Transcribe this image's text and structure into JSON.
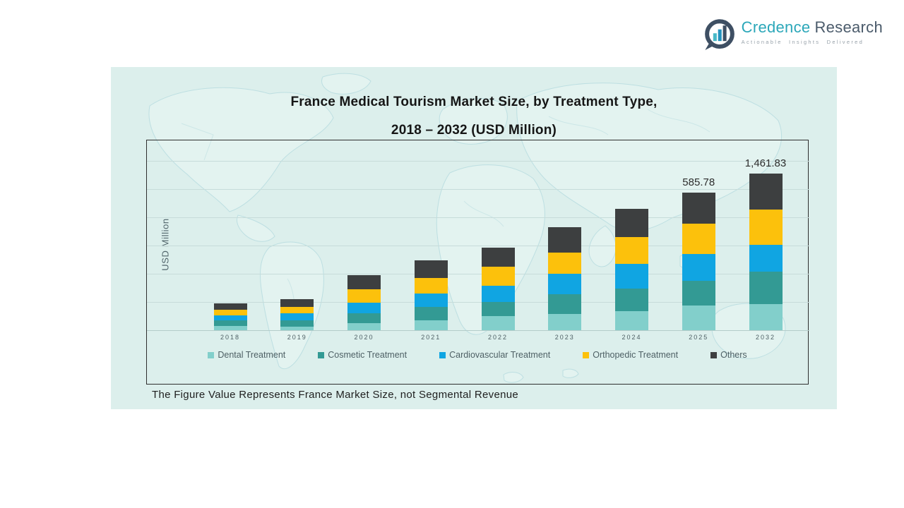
{
  "logo": {
    "brand_primary": "Credence",
    "brand_secondary": "Research",
    "tagline": "Actionable Insights Delivered"
  },
  "panel": {
    "title_line1": "France Medical Tourism Market Size, by Treatment Type,",
    "title_line2": "2018 – 2032 (USD Million)",
    "footnote": "The Figure Value Represents France Market Size, not Segmental Revenue"
  },
  "chart_data": {
    "type": "stacked-bar",
    "title": "France Medical Tourism Market Size, by Treatment Type, 2018 – 2032 (USD Million)",
    "xlabel": "",
    "ylabel": "USD Million",
    "categories": [
      "2018",
      "2019",
      "2020",
      "2021",
      "2022",
      "2023",
      "2024",
      "2025",
      "2032"
    ],
    "series": [
      {
        "name": "Dental Treatment",
        "color": "#82cfcb",
        "values": [
          6,
          5,
          10,
          14,
          20,
          23,
          27,
          35,
          37
        ]
      },
      {
        "name": "Cosmetic Treatment",
        "color": "#339a94",
        "values": [
          8,
          9,
          14,
          19,
          20,
          28,
          32,
          35,
          46
        ]
      },
      {
        "name": "Cardiovascular Treatment",
        "color": "#10a5e2",
        "values": [
          7,
          10,
          15,
          19,
          23,
          29,
          35,
          38,
          38
        ]
      },
      {
        "name": "Orthopedic Treatment",
        "color": "#fcc10c",
        "values": [
          8,
          9,
          19,
          22,
          27,
          30,
          38,
          43,
          50
        ]
      },
      {
        "name": "Others",
        "color": "#3d3f40",
        "values": [
          9,
          11,
          20,
          25,
          27,
          36,
          40,
          44,
          51
        ]
      }
    ],
    "value_scale_note": "no numeric y-axis ticks shown; series values are bar-segment heights in rendered pixels",
    "data_labels": [
      {
        "category": "2025",
        "label": "585.78"
      },
      {
        "category": "2032",
        "label": "1,461.83"
      }
    ],
    "legend_position": "bottom",
    "grid": true
  },
  "colors": {
    "page_bg": "#ffffff",
    "panel_bg": "#dcefec",
    "map_line": "#b9dde0",
    "map_fill": "#e7f5f2",
    "chart_border": "#2e2e2e",
    "gridline": "#c7dcda",
    "axis_text": "#4e6065",
    "title_text": "#161616",
    "logo_teal": "#2ba7b9",
    "logo_gray": "#4b5b6b"
  }
}
